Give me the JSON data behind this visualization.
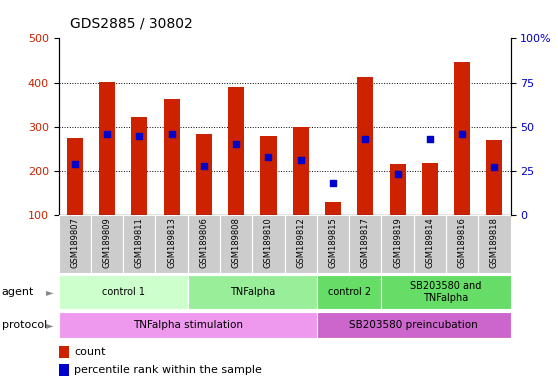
{
  "title": "GDS2885 / 30802",
  "samples": [
    "GSM189807",
    "GSM189809",
    "GSM189811",
    "GSM189813",
    "GSM189806",
    "GSM189808",
    "GSM189810",
    "GSM189812",
    "GSM189815",
    "GSM189817",
    "GSM189819",
    "GSM189814",
    "GSM189816",
    "GSM189818"
  ],
  "red_values": [
    275,
    402,
    323,
    363,
    283,
    390,
    278,
    300,
    130,
    413,
    215,
    218,
    447,
    270
  ],
  "blue_values_pct": [
    29,
    46,
    45,
    46,
    28,
    40,
    33,
    31,
    18,
    43,
    23,
    43,
    46,
    27
  ],
  "ylim_left": [
    100,
    500
  ],
  "ylim_right": [
    0,
    100
  ],
  "bar_color": "#cc2200",
  "dot_color": "#0000cc",
  "sample_bg": "#cccccc",
  "agent_groups": [
    {
      "label": "control 1",
      "start": 0,
      "end": 4,
      "color": "#ccffcc"
    },
    {
      "label": "TNFalpha",
      "start": 4,
      "end": 8,
      "color": "#99ee99"
    },
    {
      "label": "control 2",
      "start": 8,
      "end": 10,
      "color": "#66dd66"
    },
    {
      "label": "SB203580 and\nTNFalpha",
      "start": 10,
      "end": 14,
      "color": "#66dd66"
    }
  ],
  "protocol_groups": [
    {
      "label": "TNFalpha stimulation",
      "start": 0,
      "end": 8,
      "color": "#ee99ee"
    },
    {
      "label": "SB203580 preincubation",
      "start": 8,
      "end": 14,
      "color": "#cc66cc"
    }
  ]
}
